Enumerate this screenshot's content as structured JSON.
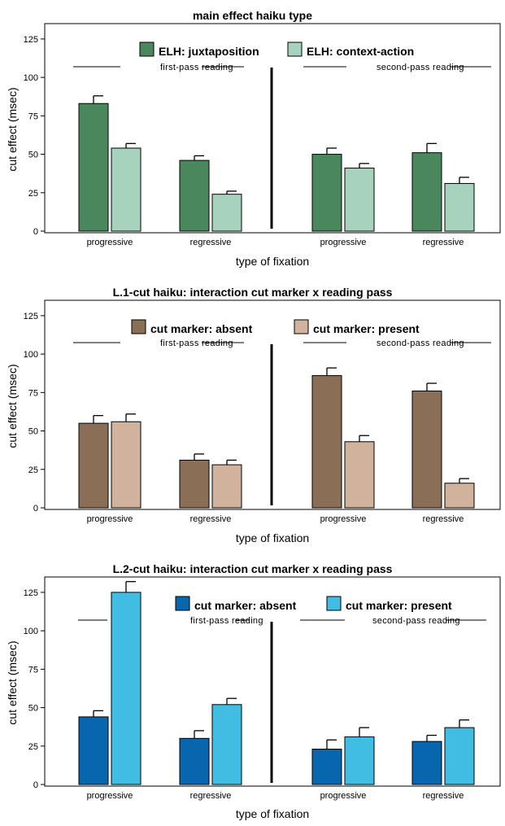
{
  "chart_data": [
    {
      "type": "bar",
      "title": "main effect haiku type",
      "xlabel": "type of fixation",
      "ylabel": "cut effect (msec)",
      "ylim": [
        0,
        135
      ],
      "yticks": [
        0,
        25,
        50,
        75,
        100,
        125
      ],
      "categories": [
        "progressive",
        "regressive",
        "progressive",
        "regressive"
      ],
      "pass_labels": [
        "first-pass reading",
        "second-pass reading"
      ],
      "series": [
        {
          "name": "ELH: juxtaposition",
          "color": "#4a875d",
          "values": [
            83,
            46,
            50,
            51
          ],
          "errors": [
            5,
            3,
            4,
            6
          ]
        },
        {
          "name": "ELH: context-action",
          "color": "#a7d3be",
          "values": [
            54,
            24,
            41,
            31
          ],
          "errors": [
            3,
            2,
            3,
            4
          ]
        }
      ]
    },
    {
      "type": "bar",
      "title": "L.1-cut haiku: interaction cut marker x reading pass",
      "xlabel": "type of fixation",
      "ylabel": "cut effect (msec)",
      "ylim": [
        0,
        135
      ],
      "yticks": [
        0,
        25,
        50,
        75,
        100,
        125
      ],
      "categories": [
        "progressive",
        "regressive",
        "progressive",
        "regressive"
      ],
      "pass_labels": [
        "first-pass reading",
        "second-pass reading"
      ],
      "series": [
        {
          "name": "cut marker: absent",
          "color": "#8b6e56",
          "values": [
            55,
            31,
            86,
            76
          ],
          "errors": [
            5,
            4,
            5,
            5
          ]
        },
        {
          "name": "cut marker: present",
          "color": "#d0b29d",
          "values": [
            56,
            28,
            43,
            16
          ],
          "errors": [
            5,
            3,
            4,
            3
          ]
        }
      ]
    },
    {
      "type": "bar",
      "title": "L.2-cut haiku: interaction cut marker x reading pass",
      "xlabel": "type of fixation",
      "ylabel": "cut effect (msec)",
      "ylim": [
        0,
        135
      ],
      "yticks": [
        0,
        25,
        50,
        75,
        100,
        125
      ],
      "categories": [
        "progressive",
        "regressive",
        "progressive",
        "regressive"
      ],
      "pass_labels": [
        "first-pass reading",
        "second-pass reading"
      ],
      "series": [
        {
          "name": "cut marker: absent",
          "color": "#0866ae",
          "values": [
            44,
            30,
            23,
            28
          ],
          "errors": [
            4,
            5,
            6,
            4
          ]
        },
        {
          "name": "cut marker: present",
          "color": "#41bde4",
          "values": [
            125,
            52,
            31,
            37
          ],
          "errors": [
            7,
            4,
            6,
            5
          ]
        }
      ]
    }
  ]
}
